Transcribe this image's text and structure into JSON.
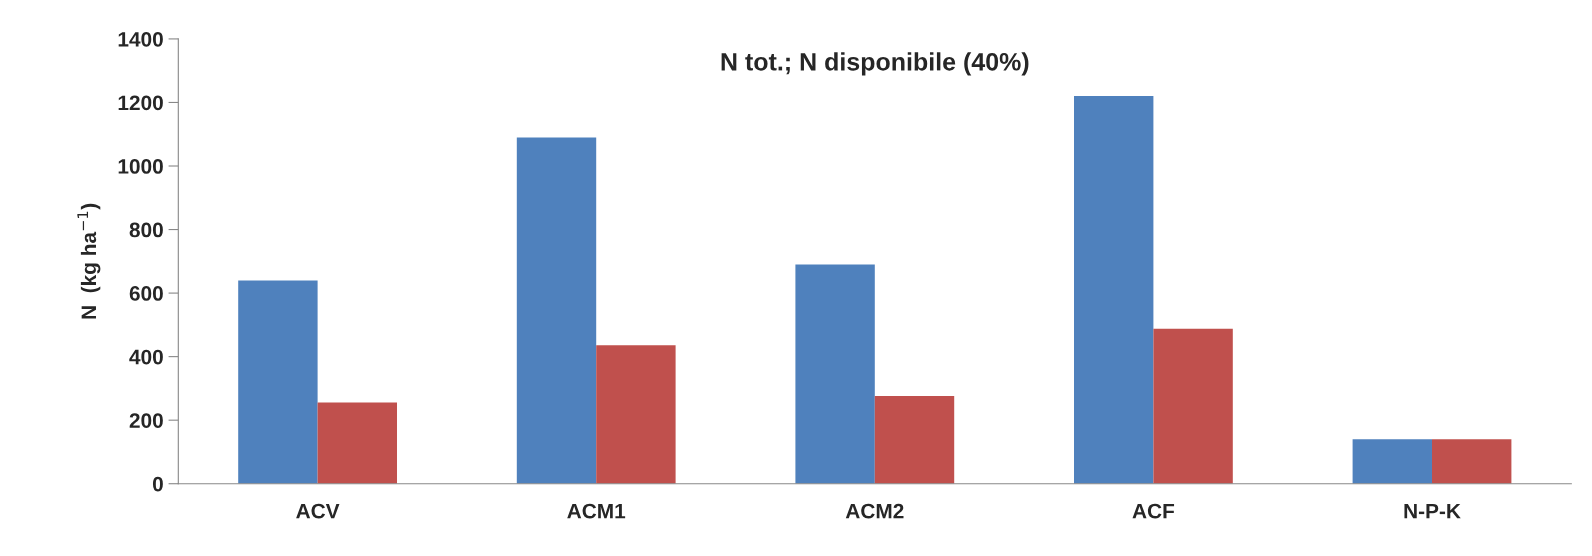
{
  "chart_data": {
    "type": "bar",
    "title": "N tot.; N disponibile (40%)",
    "ylabel": "N  (kg ha$^{−1}$)",
    "categories": [
      "ACV",
      "ACM1",
      "ACM2",
      "ACF",
      "N-P-K"
    ],
    "series": [
      {
        "color": "#4f81bd",
        "values": [
          640,
          1090,
          690,
          1220,
          140
        ]
      },
      {
        "color": "#c0504d",
        "values": [
          256,
          436,
          276,
          488,
          140
        ]
      }
    ],
    "ylim": [
      0,
      1400
    ],
    "yticks": [
      0,
      200,
      400,
      600,
      800,
      1000,
      1200,
      1400
    ],
    "grid": false
  }
}
